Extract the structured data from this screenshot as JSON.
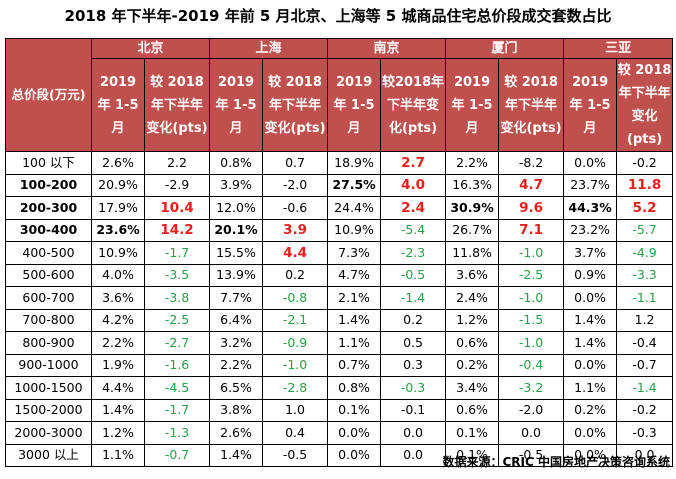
{
  "title": "2018 年下半年-2019 年前 5 月北京、上海等 5 城商品住宅总价段成交套数占比",
  "header": {
    "range_label": "总价段(万元)",
    "cities": [
      "北京",
      "上海",
      "南京",
      "厦门",
      "三亚"
    ],
    "sub_cols": [
      [
        "2019 年 1-5 月",
        "较 2018 年下半年变化(pts)"
      ],
      [
        "2019 年 1-5 月",
        "较 2018 年下半年变化(pts)"
      ],
      [
        "2019 年 1-5 月",
        "较2018年下半年变化(pts)"
      ],
      [
        "2019 年 1-5 月",
        "较 2018 年下半年变化(pts)"
      ],
      [
        "2019 年 1-5 月",
        "较 2018 年下半年变化(pts)"
      ]
    ]
  },
  "rows": [
    {
      "range": "100 以下",
      "bold": false,
      "cells": [
        {
          "v": "2.6%",
          "s": ""
        },
        {
          "v": "2.2",
          "s": ""
        },
        {
          "v": "0.8%",
          "s": ""
        },
        {
          "v": "0.7",
          "s": ""
        },
        {
          "v": "18.9%",
          "s": ""
        },
        {
          "v": "2.7",
          "s": "red"
        },
        {
          "v": "2.2%",
          "s": ""
        },
        {
          "v": "-8.2",
          "s": ""
        },
        {
          "v": "0.0%",
          "s": ""
        },
        {
          "v": "-0.2",
          "s": ""
        }
      ]
    },
    {
      "range": "100-200",
      "bold": true,
      "cells": [
        {
          "v": "20.9%",
          "s": ""
        },
        {
          "v": "-2.9",
          "s": ""
        },
        {
          "v": "3.9%",
          "s": ""
        },
        {
          "v": "-2.0",
          "s": ""
        },
        {
          "v": "27.5%",
          "s": "bold"
        },
        {
          "v": "4.0",
          "s": "red"
        },
        {
          "v": "16.3%",
          "s": ""
        },
        {
          "v": "4.7",
          "s": "red"
        },
        {
          "v": "23.7%",
          "s": ""
        },
        {
          "v": "11.8",
          "s": "red"
        }
      ]
    },
    {
      "range": "200-300",
      "bold": true,
      "cells": [
        {
          "v": "17.9%",
          "s": ""
        },
        {
          "v": "10.4",
          "s": "red"
        },
        {
          "v": "12.0%",
          "s": ""
        },
        {
          "v": "-0.6",
          "s": ""
        },
        {
          "v": "24.4%",
          "s": ""
        },
        {
          "v": "2.4",
          "s": "red"
        },
        {
          "v": "30.9%",
          "s": "bold"
        },
        {
          "v": "9.6",
          "s": "red"
        },
        {
          "v": "44.3%",
          "s": "bold"
        },
        {
          "v": "5.2",
          "s": "red"
        }
      ]
    },
    {
      "range": "300-400",
      "bold": true,
      "cells": [
        {
          "v": "23.6%",
          "s": "bold"
        },
        {
          "v": "14.2",
          "s": "red"
        },
        {
          "v": "20.1%",
          "s": "bold"
        },
        {
          "v": "3.9",
          "s": "red"
        },
        {
          "v": "10.9%",
          "s": ""
        },
        {
          "v": "-5.4",
          "s": "green"
        },
        {
          "v": "26.7%",
          "s": ""
        },
        {
          "v": "7.1",
          "s": "red"
        },
        {
          "v": "23.2%",
          "s": ""
        },
        {
          "v": "-5.7",
          "s": "green"
        }
      ]
    },
    {
      "range": "400-500",
      "bold": false,
      "cells": [
        {
          "v": "10.9%",
          "s": ""
        },
        {
          "v": "-1.7",
          "s": "green"
        },
        {
          "v": "15.5%",
          "s": ""
        },
        {
          "v": "4.4",
          "s": "red"
        },
        {
          "v": "7.3%",
          "s": ""
        },
        {
          "v": "-2.3",
          "s": "green"
        },
        {
          "v": "11.8%",
          "s": ""
        },
        {
          "v": "-1.0",
          "s": "green"
        },
        {
          "v": "3.7%",
          "s": ""
        },
        {
          "v": "-4.9",
          "s": "green"
        }
      ]
    },
    {
      "range": "500-600",
      "bold": false,
      "cells": [
        {
          "v": "4.0%",
          "s": ""
        },
        {
          "v": "-3.5",
          "s": "green"
        },
        {
          "v": "13.9%",
          "s": ""
        },
        {
          "v": "0.2",
          "s": ""
        },
        {
          "v": "4.7%",
          "s": ""
        },
        {
          "v": "-0.5",
          "s": "green"
        },
        {
          "v": "3.6%",
          "s": ""
        },
        {
          "v": "-2.5",
          "s": "green"
        },
        {
          "v": "0.9%",
          "s": ""
        },
        {
          "v": "-3.3",
          "s": "green"
        }
      ]
    },
    {
      "range": "600-700",
      "bold": false,
      "cells": [
        {
          "v": "3.6%",
          "s": ""
        },
        {
          "v": "-3.8",
          "s": "green"
        },
        {
          "v": "7.7%",
          "s": ""
        },
        {
          "v": "-0.8",
          "s": "green"
        },
        {
          "v": "2.1%",
          "s": ""
        },
        {
          "v": "-1.4",
          "s": "green"
        },
        {
          "v": "2.4%",
          "s": ""
        },
        {
          "v": "-1.0",
          "s": "green"
        },
        {
          "v": "0.0%",
          "s": ""
        },
        {
          "v": "-1.1",
          "s": "green"
        }
      ]
    },
    {
      "range": "700-800",
      "bold": false,
      "cells": [
        {
          "v": "4.2%",
          "s": ""
        },
        {
          "v": "-2.5",
          "s": "green"
        },
        {
          "v": "6.4%",
          "s": ""
        },
        {
          "v": "-2.1",
          "s": "green"
        },
        {
          "v": "1.4%",
          "s": ""
        },
        {
          "v": "0.2",
          "s": ""
        },
        {
          "v": "1.2%",
          "s": ""
        },
        {
          "v": "-1.5",
          "s": "green"
        },
        {
          "v": "1.4%",
          "s": ""
        },
        {
          "v": "1.2",
          "s": ""
        }
      ]
    },
    {
      "range": "800-900",
      "bold": false,
      "cells": [
        {
          "v": "2.2%",
          "s": ""
        },
        {
          "v": "-2.7",
          "s": "green"
        },
        {
          "v": "3.2%",
          "s": ""
        },
        {
          "v": "-0.9",
          "s": "green"
        },
        {
          "v": "1.1%",
          "s": ""
        },
        {
          "v": "0.5",
          "s": ""
        },
        {
          "v": "0.6%",
          "s": ""
        },
        {
          "v": "-1.0",
          "s": "green"
        },
        {
          "v": "1.4%",
          "s": ""
        },
        {
          "v": "-0.4",
          "s": ""
        }
      ]
    },
    {
      "range": "900-1000",
      "bold": false,
      "cells": [
        {
          "v": "1.9%",
          "s": ""
        },
        {
          "v": "-1.6",
          "s": "green"
        },
        {
          "v": "2.2%",
          "s": ""
        },
        {
          "v": "-1.0",
          "s": "green"
        },
        {
          "v": "0.7%",
          "s": ""
        },
        {
          "v": "0.3",
          "s": ""
        },
        {
          "v": "0.2%",
          "s": ""
        },
        {
          "v": "-0.4",
          "s": "green"
        },
        {
          "v": "0.0%",
          "s": ""
        },
        {
          "v": "-0.7",
          "s": ""
        }
      ]
    },
    {
      "range": "1000-1500",
      "bold": false,
      "cells": [
        {
          "v": "4.4%",
          "s": ""
        },
        {
          "v": "-4.5",
          "s": "green"
        },
        {
          "v": "6.5%",
          "s": ""
        },
        {
          "v": "-2.8",
          "s": "green"
        },
        {
          "v": "0.8%",
          "s": ""
        },
        {
          "v": "-0.3",
          "s": "green"
        },
        {
          "v": "3.4%",
          "s": ""
        },
        {
          "v": "-3.2",
          "s": "green"
        },
        {
          "v": "1.1%",
          "s": ""
        },
        {
          "v": "-1.4",
          "s": "green"
        }
      ]
    },
    {
      "range": "1500-2000",
      "bold": false,
      "cells": [
        {
          "v": "1.4%",
          "s": ""
        },
        {
          "v": "-1.7",
          "s": "green"
        },
        {
          "v": "3.8%",
          "s": ""
        },
        {
          "v": "1.0",
          "s": ""
        },
        {
          "v": "0.1%",
          "s": ""
        },
        {
          "v": "-0.1",
          "s": ""
        },
        {
          "v": "0.6%",
          "s": ""
        },
        {
          "v": "-2.0",
          "s": ""
        },
        {
          "v": "0.2%",
          "s": ""
        },
        {
          "v": "-0.2",
          "s": ""
        }
      ]
    },
    {
      "range": "2000-3000",
      "bold": false,
      "cells": [
        {
          "v": "1.2%",
          "s": ""
        },
        {
          "v": "-1.3",
          "s": "green"
        },
        {
          "v": "2.6%",
          "s": ""
        },
        {
          "v": "0.4",
          "s": ""
        },
        {
          "v": "0.0%",
          "s": ""
        },
        {
          "v": "0.0",
          "s": ""
        },
        {
          "v": "0.1%",
          "s": ""
        },
        {
          "v": "0.0",
          "s": ""
        },
        {
          "v": "0.0%",
          "s": ""
        },
        {
          "v": "-0.3",
          "s": ""
        }
      ]
    },
    {
      "range": "3000 以上",
      "bold": false,
      "cells": [
        {
          "v": "1.1%",
          "s": ""
        },
        {
          "v": "-0.7",
          "s": "green"
        },
        {
          "v": "1.4%",
          "s": ""
        },
        {
          "v": "-0.5",
          "s": ""
        },
        {
          "v": "0.0%",
          "s": ""
        },
        {
          "v": "0.0",
          "s": ""
        },
        {
          "v": "0.1%",
          "s": ""
        },
        {
          "v": "-0.5",
          "s": ""
        },
        {
          "v": "0.0%",
          "s": ""
        },
        {
          "v": "0.0",
          "s": ""
        }
      ]
    }
  ],
  "source": "数据来源：CRIC 中国房地产决策咨询系统",
  "colors": {
    "header_bg": "#c0504d",
    "increase": "#e8201c",
    "decrease": "#27a047"
  }
}
